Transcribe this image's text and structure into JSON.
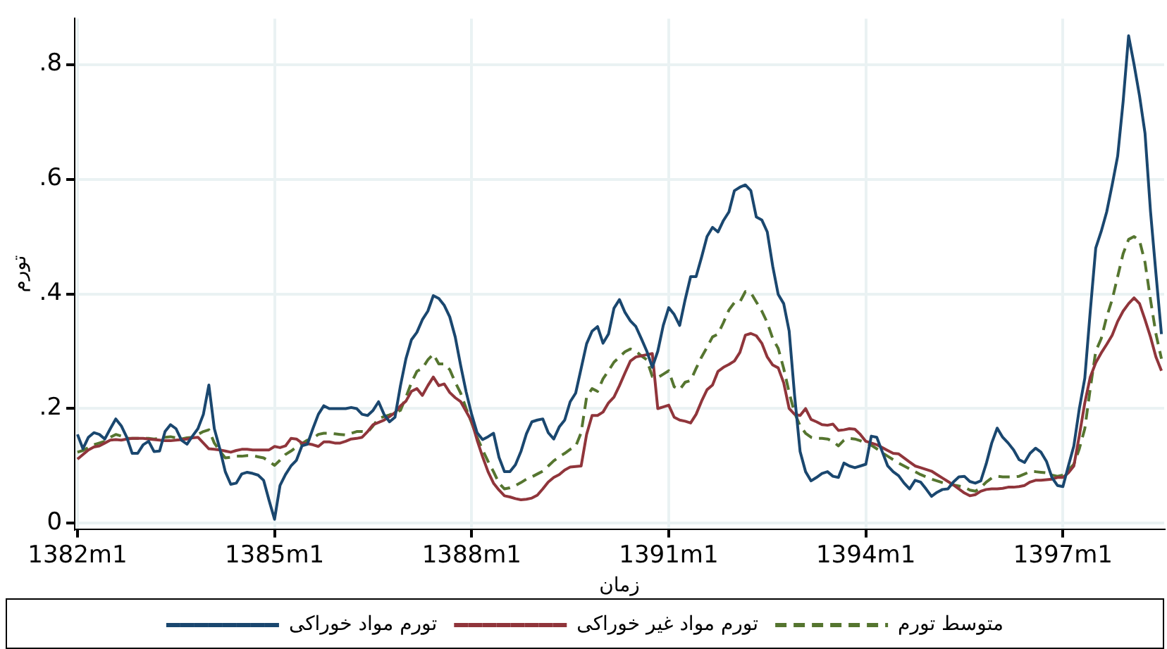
{
  "chart_data": {
    "type": "line",
    "xlabel": "زمان",
    "ylabel": "تورم",
    "ylim": [
      -0.01,
      0.88
    ],
    "categories": [
      "1382m1",
      null,
      null,
      null,
      null,
      null,
      null,
      null,
      null,
      null,
      null,
      null,
      null,
      null,
      null,
      null,
      null,
      null,
      null,
      null,
      null,
      null,
      null,
      null,
      null,
      null,
      null,
      null,
      null,
      null,
      null,
      null,
      null,
      null,
      null,
      null,
      "1385m1",
      null,
      null,
      null,
      null,
      null,
      null,
      null,
      null,
      null,
      null,
      null,
      null,
      null,
      null,
      null,
      null,
      null,
      null,
      null,
      null,
      null,
      null,
      null,
      null,
      null,
      null,
      null,
      null,
      null,
      null,
      null,
      null,
      null,
      null,
      null,
      "1388m1",
      null,
      null,
      null,
      null,
      null,
      null,
      null,
      null,
      null,
      null,
      null,
      null,
      null,
      null,
      null,
      null,
      null,
      null,
      null,
      null,
      null,
      null,
      null,
      null,
      null,
      null,
      null,
      null,
      null,
      null,
      null,
      null,
      null,
      null,
      null,
      "1391m1",
      null,
      null,
      null,
      null,
      null,
      null,
      null,
      null,
      null,
      null,
      null,
      null,
      null,
      null,
      null,
      null,
      null,
      null,
      null,
      null,
      null,
      null,
      null,
      null,
      null,
      null,
      null,
      null,
      null,
      null,
      null,
      null,
      null,
      null,
      null,
      "1394m1",
      null,
      null,
      null,
      null,
      null,
      null,
      null,
      null,
      null,
      null,
      null,
      null,
      null,
      null,
      null,
      null,
      null,
      null,
      null,
      null,
      null,
      null,
      null,
      null,
      null,
      null,
      null,
      null,
      null,
      null,
      null,
      null,
      null,
      null,
      null,
      "1397m1",
      null,
      null,
      null,
      null,
      null,
      null,
      null,
      null,
      null,
      null,
      null,
      null,
      null,
      null,
      null,
      null,
      null,
      null
    ],
    "yticks": [
      {
        "value": 0,
        "label": "0"
      },
      {
        "value": 0.2,
        "label": ".2"
      },
      {
        "value": 0.4,
        "label": ".4"
      },
      {
        "value": 0.6,
        "label": ".6"
      },
      {
        "value": 0.8,
        "label": ".8"
      }
    ],
    "grid": true,
    "legend": "bottom",
    "marker": "none",
    "series": [
      {
        "name": "تورم مواد خوراکی",
        "color": "#1a476f",
        "line_style": "solid",
        "values": [
          0.155,
          0.13,
          0.15,
          0.158,
          0.155,
          0.147,
          0.165,
          0.182,
          0.17,
          0.15,
          0.122,
          0.122,
          0.137,
          0.143,
          0.125,
          0.126,
          0.16,
          0.172,
          0.165,
          0.145,
          0.138,
          0.152,
          0.165,
          0.19,
          0.241,
          0.165,
          0.13,
          0.09,
          0.068,
          0.07,
          0.086,
          0.089,
          0.087,
          0.084,
          0.075,
          0.04,
          0.007,
          0.066,
          0.085,
          0.1,
          0.11,
          0.135,
          0.138,
          0.165,
          0.19,
          0.205,
          0.2,
          0.2,
          0.2,
          0.2,
          0.202,
          0.2,
          0.19,
          0.188,
          0.197,
          0.212,
          0.19,
          0.177,
          0.185,
          0.24,
          0.287,
          0.32,
          0.333,
          0.355,
          0.37,
          0.397,
          0.392,
          0.38,
          0.36,
          0.325,
          0.275,
          0.229,
          0.19,
          0.158,
          0.146,
          0.151,
          0.157,
          0.115,
          0.09,
          0.09,
          0.102,
          0.125,
          0.156,
          0.177,
          0.18,
          0.182,
          0.158,
          0.147,
          0.168,
          0.18,
          0.212,
          0.227,
          0.27,
          0.313,
          0.335,
          0.343,
          0.314,
          0.33,
          0.375,
          0.39,
          0.368,
          0.353,
          0.343,
          0.322,
          0.3,
          0.272,
          0.3,
          0.345,
          0.376,
          0.364,
          0.345,
          0.39,
          0.43,
          0.43,
          0.464,
          0.5,
          0.516,
          0.508,
          0.528,
          0.543,
          0.58,
          0.586,
          0.59,
          0.58,
          0.534,
          0.529,
          0.508,
          0.448,
          0.399,
          0.383,
          0.335,
          0.222,
          0.125,
          0.09,
          0.074,
          0.08,
          0.087,
          0.09,
          0.082,
          0.08,
          0.105,
          0.1,
          0.097,
          0.1,
          0.103,
          0.152,
          0.15,
          0.125,
          0.1,
          0.09,
          0.083,
          0.07,
          0.06,
          0.075,
          0.072,
          0.06,
          0.047,
          0.054,
          0.059,
          0.06,
          0.072,
          0.081,
          0.082,
          0.073,
          0.07,
          0.074,
          0.104,
          0.14,
          0.166,
          0.15,
          0.14,
          0.128,
          0.111,
          0.106,
          0.122,
          0.131,
          0.124,
          0.108,
          0.08,
          0.066,
          0.064,
          0.1,
          0.135,
          0.2,
          0.253,
          0.37,
          0.48,
          0.509,
          0.543,
          0.59,
          0.64,
          0.735,
          0.85,
          0.8,
          0.745,
          0.68,
          0.544,
          0.435,
          0.33
        ]
      },
      {
        "name": "تورم مواد غیر خوراکی",
        "color": "#90353b",
        "line_style": "solid",
        "values": [
          0.112,
          0.12,
          0.128,
          0.133,
          0.135,
          0.14,
          0.145,
          0.146,
          0.145,
          0.147,
          0.148,
          0.148,
          0.148,
          0.147,
          0.146,
          0.145,
          0.144,
          0.144,
          0.145,
          0.146,
          0.147,
          0.149,
          0.15,
          0.14,
          0.13,
          0.129,
          0.128,
          0.126,
          0.124,
          0.127,
          0.129,
          0.129,
          0.128,
          0.128,
          0.128,
          0.128,
          0.134,
          0.132,
          0.135,
          0.148,
          0.147,
          0.14,
          0.139,
          0.137,
          0.134,
          0.142,
          0.142,
          0.14,
          0.14,
          0.143,
          0.147,
          0.148,
          0.15,
          0.16,
          0.172,
          0.176,
          0.18,
          0.186,
          0.193,
          0.205,
          0.213,
          0.23,
          0.235,
          0.223,
          0.24,
          0.255,
          0.24,
          0.243,
          0.228,
          0.219,
          0.212,
          0.195,
          0.178,
          0.145,
          0.116,
          0.09,
          0.07,
          0.058,
          0.048,
          0.046,
          0.043,
          0.041,
          0.042,
          0.044,
          0.049,
          0.06,
          0.072,
          0.08,
          0.085,
          0.093,
          0.098,
          0.099,
          0.1,
          0.155,
          0.188,
          0.188,
          0.194,
          0.21,
          0.22,
          0.24,
          0.262,
          0.283,
          0.29,
          0.292,
          0.294,
          0.296,
          0.2,
          0.203,
          0.206,
          0.185,
          0.18,
          0.178,
          0.175,
          0.19,
          0.213,
          0.233,
          0.241,
          0.265,
          0.272,
          0.277,
          0.283,
          0.298,
          0.328,
          0.331,
          0.327,
          0.314,
          0.29,
          0.276,
          0.271,
          0.245,
          0.2,
          0.19,
          0.188,
          0.2,
          0.181,
          0.177,
          0.172,
          0.171,
          0.173,
          0.162,
          0.163,
          0.165,
          0.164,
          0.155,
          0.143,
          0.14,
          0.137,
          0.132,
          0.127,
          0.122,
          0.121,
          0.114,
          0.107,
          0.1,
          0.097,
          0.094,
          0.091,
          0.085,
          0.079,
          0.073,
          0.067,
          0.06,
          0.053,
          0.048,
          0.05,
          0.056,
          0.059,
          0.06,
          0.06,
          0.061,
          0.063,
          0.063,
          0.064,
          0.066,
          0.072,
          0.075,
          0.075,
          0.076,
          0.077,
          0.08,
          0.08,
          0.088,
          0.1,
          0.153,
          0.21,
          0.255,
          0.28,
          0.297,
          0.312,
          0.328,
          0.352,
          0.37,
          0.383,
          0.393,
          0.383,
          0.355,
          0.325,
          0.29,
          0.266
        ]
      },
      {
        "name": "متوسط تورم",
        "color": "#55752f",
        "line_style": "dashed",
        "values": [
          0.124,
          0.127,
          0.132,
          0.137,
          0.14,
          0.143,
          0.15,
          0.155,
          0.152,
          0.148,
          0.148,
          0.148,
          0.148,
          0.148,
          0.147,
          0.148,
          0.15,
          0.151,
          0.149,
          0.147,
          0.149,
          0.15,
          0.155,
          0.16,
          0.163,
          0.14,
          0.126,
          0.114,
          0.115,
          0.117,
          0.117,
          0.118,
          0.118,
          0.116,
          0.114,
          0.108,
          0.101,
          0.11,
          0.12,
          0.126,
          0.133,
          0.139,
          0.145,
          0.148,
          0.155,
          0.157,
          0.157,
          0.156,
          0.155,
          0.154,
          0.157,
          0.16,
          0.16,
          0.159,
          0.17,
          0.183,
          0.186,
          0.189,
          0.193,
          0.197,
          0.22,
          0.245,
          0.265,
          0.27,
          0.285,
          0.295,
          0.278,
          0.278,
          0.268,
          0.246,
          0.227,
          0.2,
          0.175,
          0.15,
          0.128,
          0.108,
          0.09,
          0.07,
          0.06,
          0.062,
          0.066,
          0.071,
          0.077,
          0.081,
          0.086,
          0.091,
          0.1,
          0.109,
          0.116,
          0.122,
          0.129,
          0.134,
          0.158,
          0.22,
          0.235,
          0.23,
          0.252,
          0.266,
          0.281,
          0.29,
          0.299,
          0.304,
          0.3,
          0.292,
          0.285,
          0.256,
          0.254,
          0.26,
          0.266,
          0.238,
          0.233,
          0.246,
          0.249,
          0.27,
          0.29,
          0.307,
          0.325,
          0.33,
          0.35,
          0.372,
          0.385,
          0.386,
          0.404,
          0.402,
          0.386,
          0.37,
          0.35,
          0.322,
          0.305,
          0.27,
          0.228,
          0.192,
          0.17,
          0.157,
          0.15,
          0.148,
          0.148,
          0.147,
          0.143,
          0.135,
          0.145,
          0.148,
          0.147,
          0.144,
          0.14,
          0.136,
          0.13,
          0.123,
          0.117,
          0.111,
          0.105,
          0.1,
          0.095,
          0.09,
          0.085,
          0.081,
          0.077,
          0.074,
          0.071,
          0.068,
          0.067,
          0.065,
          0.063,
          0.058,
          0.056,
          0.062,
          0.072,
          0.079,
          0.082,
          0.081,
          0.081,
          0.081,
          0.082,
          0.086,
          0.09,
          0.09,
          0.089,
          0.088,
          0.084,
          0.082,
          0.084,
          0.093,
          0.103,
          0.13,
          0.165,
          0.235,
          0.3,
          0.322,
          0.36,
          0.39,
          0.43,
          0.47,
          0.495,
          0.5,
          0.493,
          0.455,
          0.39,
          0.33,
          0.287
        ]
      }
    ]
  }
}
